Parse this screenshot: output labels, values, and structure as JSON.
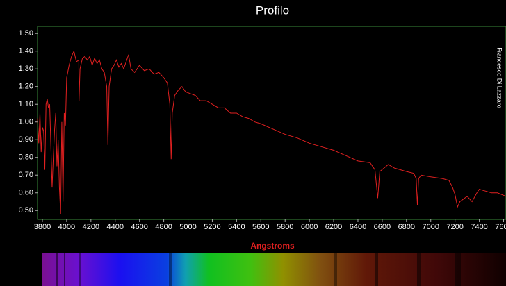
{
  "chart_data": {
    "type": "line",
    "title": "Profilo",
    "x_label": "Angstroms",
    "side_note": "Francesco Di Lazzaro",
    "xlim": [
      3760,
      7620
    ],
    "ylim": [
      0.45,
      1.54
    ],
    "xticks": [
      3800,
      4000,
      4200,
      4400,
      4600,
      4800,
      5000,
      5200,
      5400,
      5600,
      5800,
      6000,
      6200,
      6400,
      6600,
      6800,
      7000,
      7200,
      7400,
      7600
    ],
    "yticks": [
      {
        "value": 0.5,
        "label": "0.50"
      },
      {
        "value": 0.6,
        "label": "0.60"
      },
      {
        "value": 0.7,
        "label": "0.70"
      },
      {
        "value": 0.8,
        "label": "0.80"
      },
      {
        "value": 0.9,
        "label": "0.90"
      },
      {
        "value": 1.0,
        "label": "1.00"
      },
      {
        "value": 1.1,
        "label": "1.10"
      },
      {
        "value": 1.2,
        "label": "1.20"
      },
      {
        "value": 1.3,
        "label": "1.30"
      },
      {
        "value": 1.4,
        "label": "1.40"
      },
      {
        "value": 1.5,
        "label": "1.50"
      }
    ],
    "series": [
      {
        "color": "#e02020",
        "x": [
          3760,
          3770,
          3780,
          3790,
          3800,
          3810,
          3820,
          3830,
          3840,
          3850,
          3860,
          3880,
          3890,
          3900,
          3910,
          3920,
          3930,
          3940,
          3950,
          3960,
          3970,
          3980,
          3990,
          4000,
          4020,
          4040,
          4060,
          4080,
          4100,
          4102,
          4110,
          4130,
          4150,
          4170,
          4190,
          4210,
          4230,
          4250,
          4270,
          4290,
          4310,
          4330,
          4340,
          4350,
          4370,
          4390,
          4410,
          4430,
          4450,
          4470,
          4490,
          4510,
          4530,
          4560,
          4600,
          4640,
          4680,
          4720,
          4760,
          4800,
          4830,
          4850,
          4861,
          4870,
          4890,
          4920,
          4950,
          4980,
          5020,
          5060,
          5100,
          5150,
          5200,
          5250,
          5300,
          5350,
          5400,
          5450,
          5500,
          5550,
          5600,
          5700,
          5800,
          5900,
          6000,
          6100,
          6200,
          6300,
          6400,
          6500,
          6540,
          6563,
          6580,
          6650,
          6700,
          6800,
          6860,
          6880,
          6890,
          6900,
          6920,
          7000,
          7100,
          7150,
          7180,
          7200,
          7220,
          7240,
          7260,
          7300,
          7340,
          7380,
          7400,
          7450,
          7500,
          7550,
          7620
        ],
        "values": [
          1.02,
          0.88,
          1.05,
          0.83,
          0.97,
          0.95,
          0.73,
          1.1,
          1.13,
          1.08,
          1.1,
          0.63,
          0.8,
          0.95,
          1.05,
          0.75,
          0.9,
          0.63,
          0.48,
          1.0,
          0.55,
          1.05,
          0.98,
          1.25,
          1.32,
          1.37,
          1.4,
          1.34,
          1.35,
          1.12,
          1.3,
          1.36,
          1.37,
          1.35,
          1.37,
          1.32,
          1.36,
          1.33,
          1.35,
          1.3,
          1.28,
          1.2,
          0.87,
          1.2,
          1.3,
          1.32,
          1.35,
          1.31,
          1.33,
          1.3,
          1.34,
          1.38,
          1.3,
          1.28,
          1.32,
          1.29,
          1.3,
          1.27,
          1.28,
          1.25,
          1.22,
          1.1,
          0.79,
          1.05,
          1.15,
          1.18,
          1.2,
          1.17,
          1.16,
          1.15,
          1.12,
          1.12,
          1.1,
          1.08,
          1.08,
          1.05,
          1.05,
          1.03,
          1.02,
          1.0,
          0.99,
          0.96,
          0.93,
          0.91,
          0.88,
          0.86,
          0.84,
          0.81,
          0.78,
          0.77,
          0.73,
          0.57,
          0.72,
          0.76,
          0.74,
          0.72,
          0.71,
          0.68,
          0.53,
          0.68,
          0.7,
          0.69,
          0.68,
          0.67,
          0.63,
          0.59,
          0.52,
          0.55,
          0.56,
          0.58,
          0.55,
          0.6,
          0.62,
          0.61,
          0.6,
          0.6,
          0.58
        ]
      }
    ]
  }
}
